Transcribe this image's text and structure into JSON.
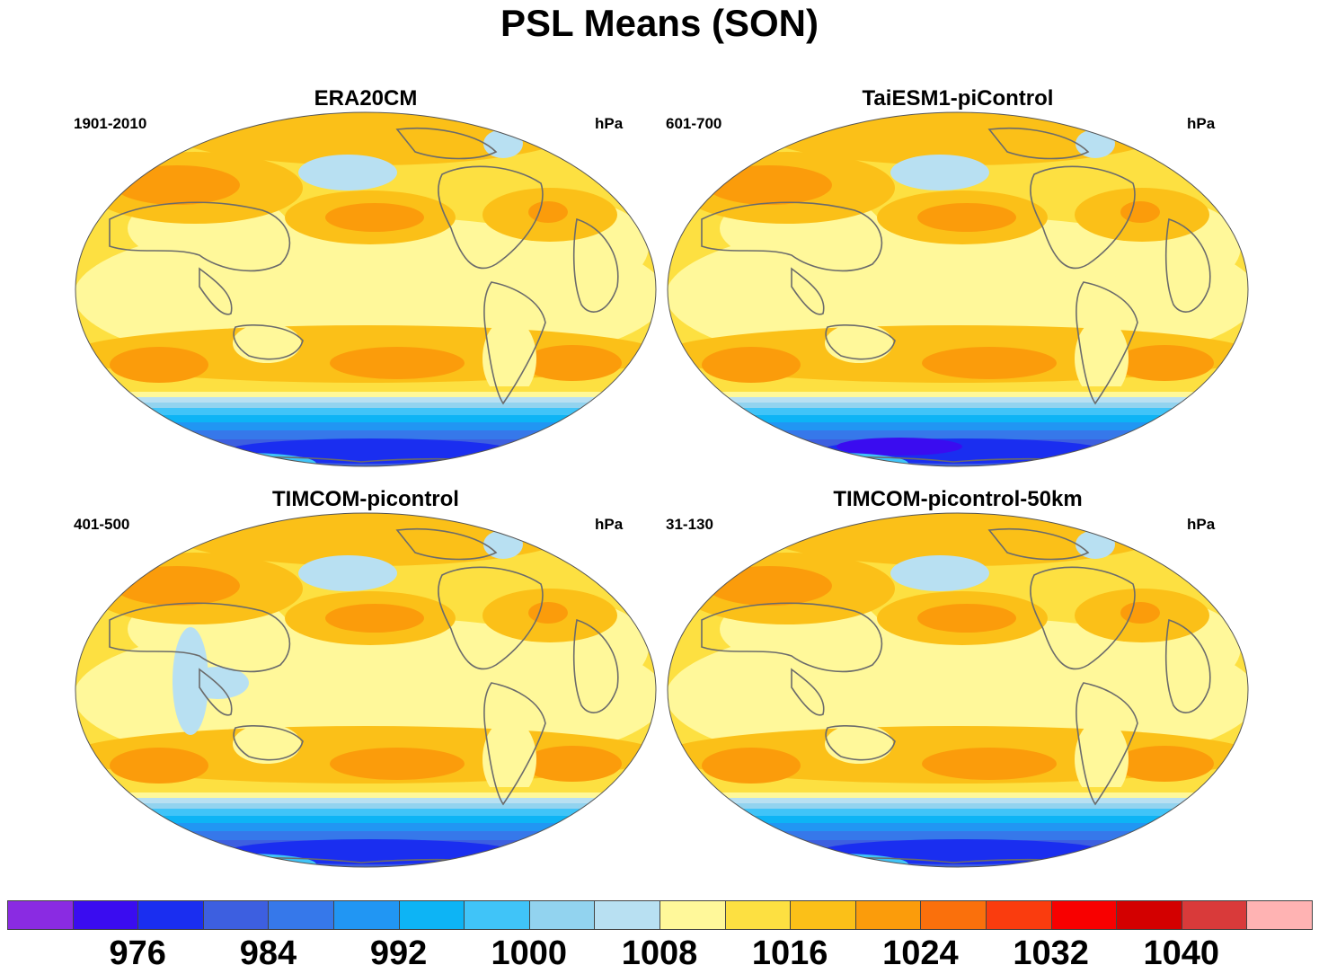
{
  "title": "PSL Means (SON)",
  "panels": [
    {
      "name": "ERA20CM",
      "period": "1901-2010",
      "units": "hPa",
      "variant": 0
    },
    {
      "name": "TaiESM1-piControl",
      "period": "601-700",
      "units": "hPa",
      "variant": 1
    },
    {
      "name": "TIMCOM-picontrol",
      "period": "401-500",
      "units": "hPa",
      "variant": 2
    },
    {
      "name": "TIMCOM-picontrol-50km",
      "period": "31-130",
      "units": "hPa",
      "variant": 3
    }
  ],
  "colorbar": {
    "colors": [
      "#8a2be2",
      "#3a0cf0",
      "#1a2ef0",
      "#3d5fe0",
      "#3678ea",
      "#2196f3",
      "#0db4f5",
      "#40c4f8",
      "#92d3ef",
      "#b8e0f2",
      "#fff89a",
      "#fde041",
      "#fbc018",
      "#fb9c0b",
      "#fa700c",
      "#fa3c0e",
      "#f80000",
      "#d30000",
      "#d93a3a",
      "#ffb3b3"
    ],
    "labels": [
      "976",
      "984",
      "992",
      "1000",
      "1008",
      "1016",
      "1024",
      "1032",
      "1040"
    ]
  }
}
